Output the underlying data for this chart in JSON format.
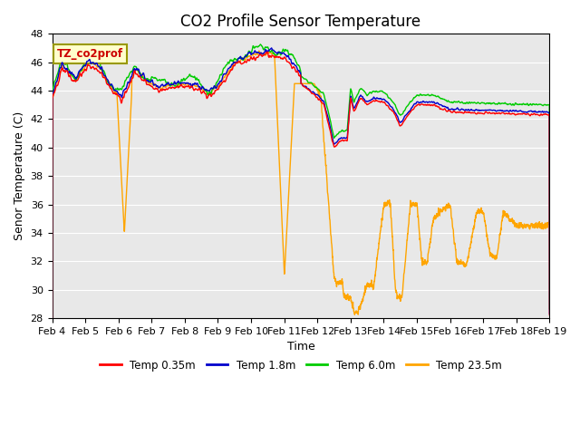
{
  "title": "CO2 Profile Sensor Temperature",
  "xlabel": "Time",
  "ylabel": "Senor Temperature (C)",
  "ylim": [
    28,
    48
  ],
  "xlim": [
    0,
    15
  ],
  "xtick_labels": [
    "Feb 4",
    "Feb 5",
    "Feb 6",
    "Feb 7",
    "Feb 8",
    "Feb 9",
    "Feb 10",
    "Feb 11",
    "Feb 12",
    "Feb 13",
    "Feb 14",
    "Feb 15",
    "Feb 16",
    "Feb 17",
    "Feb 18",
    "Feb 19"
  ],
  "ytick_values": [
    28,
    30,
    32,
    34,
    36,
    38,
    40,
    42,
    44,
    46,
    48
  ],
  "colors": {
    "red": "#FF0000",
    "blue": "#0000CC",
    "green": "#00CC00",
    "orange": "#FFA500"
  },
  "legend_labels": [
    "Temp 0.35m",
    "Temp 1.8m",
    "Temp 6.0m",
    "Temp 23.5m"
  ],
  "annotation_text": "TZ_co2prof",
  "annotation_color": "#CC0000",
  "annotation_bg": "#FFFFCC",
  "annotation_edge": "#999900",
  "background_color": "#E8E8E8",
  "title_fontsize": 12,
  "axis_label_fontsize": 9,
  "tick_fontsize": 8
}
